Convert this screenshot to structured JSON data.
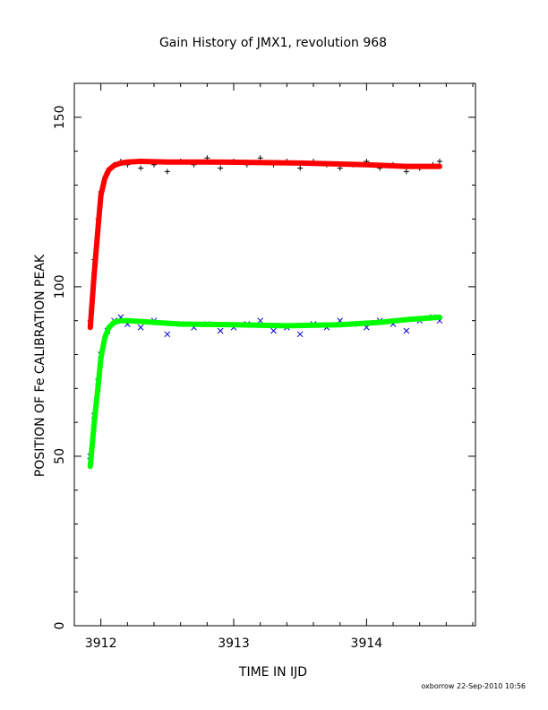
{
  "chart_data": {
    "type": "scatter",
    "title": "Gain History of JMX1, revolution 968",
    "xlabel": "TIME IN IJD",
    "ylabel": "POSITION OF Fe CALIBRATION PEAK",
    "xlim": [
      3911.8,
      3914.82
    ],
    "ylim": [
      0,
      160
    ],
    "x_ticks": [
      3912,
      3913,
      3914
    ],
    "x_tick_labels": [
      "3912",
      "3913",
      "3914"
    ],
    "y_ticks": [
      0,
      50,
      100,
      150
    ],
    "y_tick_labels": [
      "0",
      "50",
      "100",
      "150"
    ],
    "grid": false,
    "legend": "none",
    "series": [
      {
        "marker": "plus",
        "color": "#000000",
        "x": [
          3911.92,
          3911.95,
          3911.98,
          3912.0,
          3912.05,
          3912.1,
          3912.15,
          3912.2,
          3912.3,
          3912.4,
          3912.5,
          3912.6,
          3912.7,
          3912.8,
          3912.9,
          3913.0,
          3913.1,
          3913.2,
          3913.3,
          3913.4,
          3913.5,
          3913.6,
          3913.7,
          3913.8,
          3913.9,
          3914.0,
          3914.1,
          3914.2,
          3914.3,
          3914.4,
          3914.5,
          3914.55
        ],
        "y": [
          90,
          108,
          120,
          128,
          134,
          136,
          137,
          136,
          135,
          136,
          134,
          137,
          136,
          138,
          135,
          137,
          136,
          138,
          136,
          137,
          135,
          137,
          136,
          135,
          136,
          137,
          135,
          136,
          134,
          135,
          136,
          137
        ]
      },
      {
        "marker": "cross",
        "color": "#0000cc",
        "x": [
          3911.92,
          3911.95,
          3911.98,
          3912.0,
          3912.05,
          3912.1,
          3912.15,
          3912.2,
          3912.3,
          3912.4,
          3912.5,
          3912.6,
          3912.7,
          3912.8,
          3912.9,
          3913.0,
          3913.1,
          3913.2,
          3913.3,
          3913.4,
          3913.5,
          3913.6,
          3913.7,
          3913.8,
          3913.9,
          3914.0,
          3914.1,
          3914.2,
          3914.3,
          3914.4,
          3914.5,
          3914.55
        ],
        "y": [
          50,
          62,
          72,
          80,
          87,
          90,
          91,
          89,
          88,
          90,
          86,
          89,
          88,
          89,
          87,
          88,
          89,
          90,
          87,
          88,
          86,
          89,
          88,
          90,
          89,
          88,
          90,
          89,
          87,
          90,
          91,
          90
        ]
      },
      {
        "marker": "line",
        "color": "#ff0000",
        "x": [
          3911.92,
          3911.95,
          3911.98,
          3912.0,
          3912.03,
          3912.06,
          3912.1,
          3912.15,
          3912.2,
          3912.3,
          3912.5,
          3912.8,
          3913.1,
          3913.5,
          3914.0,
          3914.3,
          3914.55
        ],
        "y": [
          88,
          104,
          118,
          127,
          132,
          134.5,
          135.8,
          136.5,
          136.8,
          137,
          136.8,
          136.8,
          136.7,
          136.5,
          136,
          135.5,
          135.5
        ]
      },
      {
        "marker": "line",
        "color": "#00ff00",
        "x": [
          3911.92,
          3911.95,
          3911.98,
          3912.0,
          3912.03,
          3912.06,
          3912.1,
          3912.15,
          3912.2,
          3912.4,
          3912.6,
          3913.0,
          3913.4,
          3913.8,
          3914.1,
          3914.3,
          3914.55
        ],
        "y": [
          47,
          60,
          71,
          79,
          85,
          88,
          89.5,
          90,
          90,
          89.5,
          89,
          88.8,
          88.5,
          88.8,
          89.5,
          90.3,
          91
        ]
      }
    ]
  },
  "footer": {
    "stamp": "oxborrow 22-Sep-2010 10:56"
  }
}
